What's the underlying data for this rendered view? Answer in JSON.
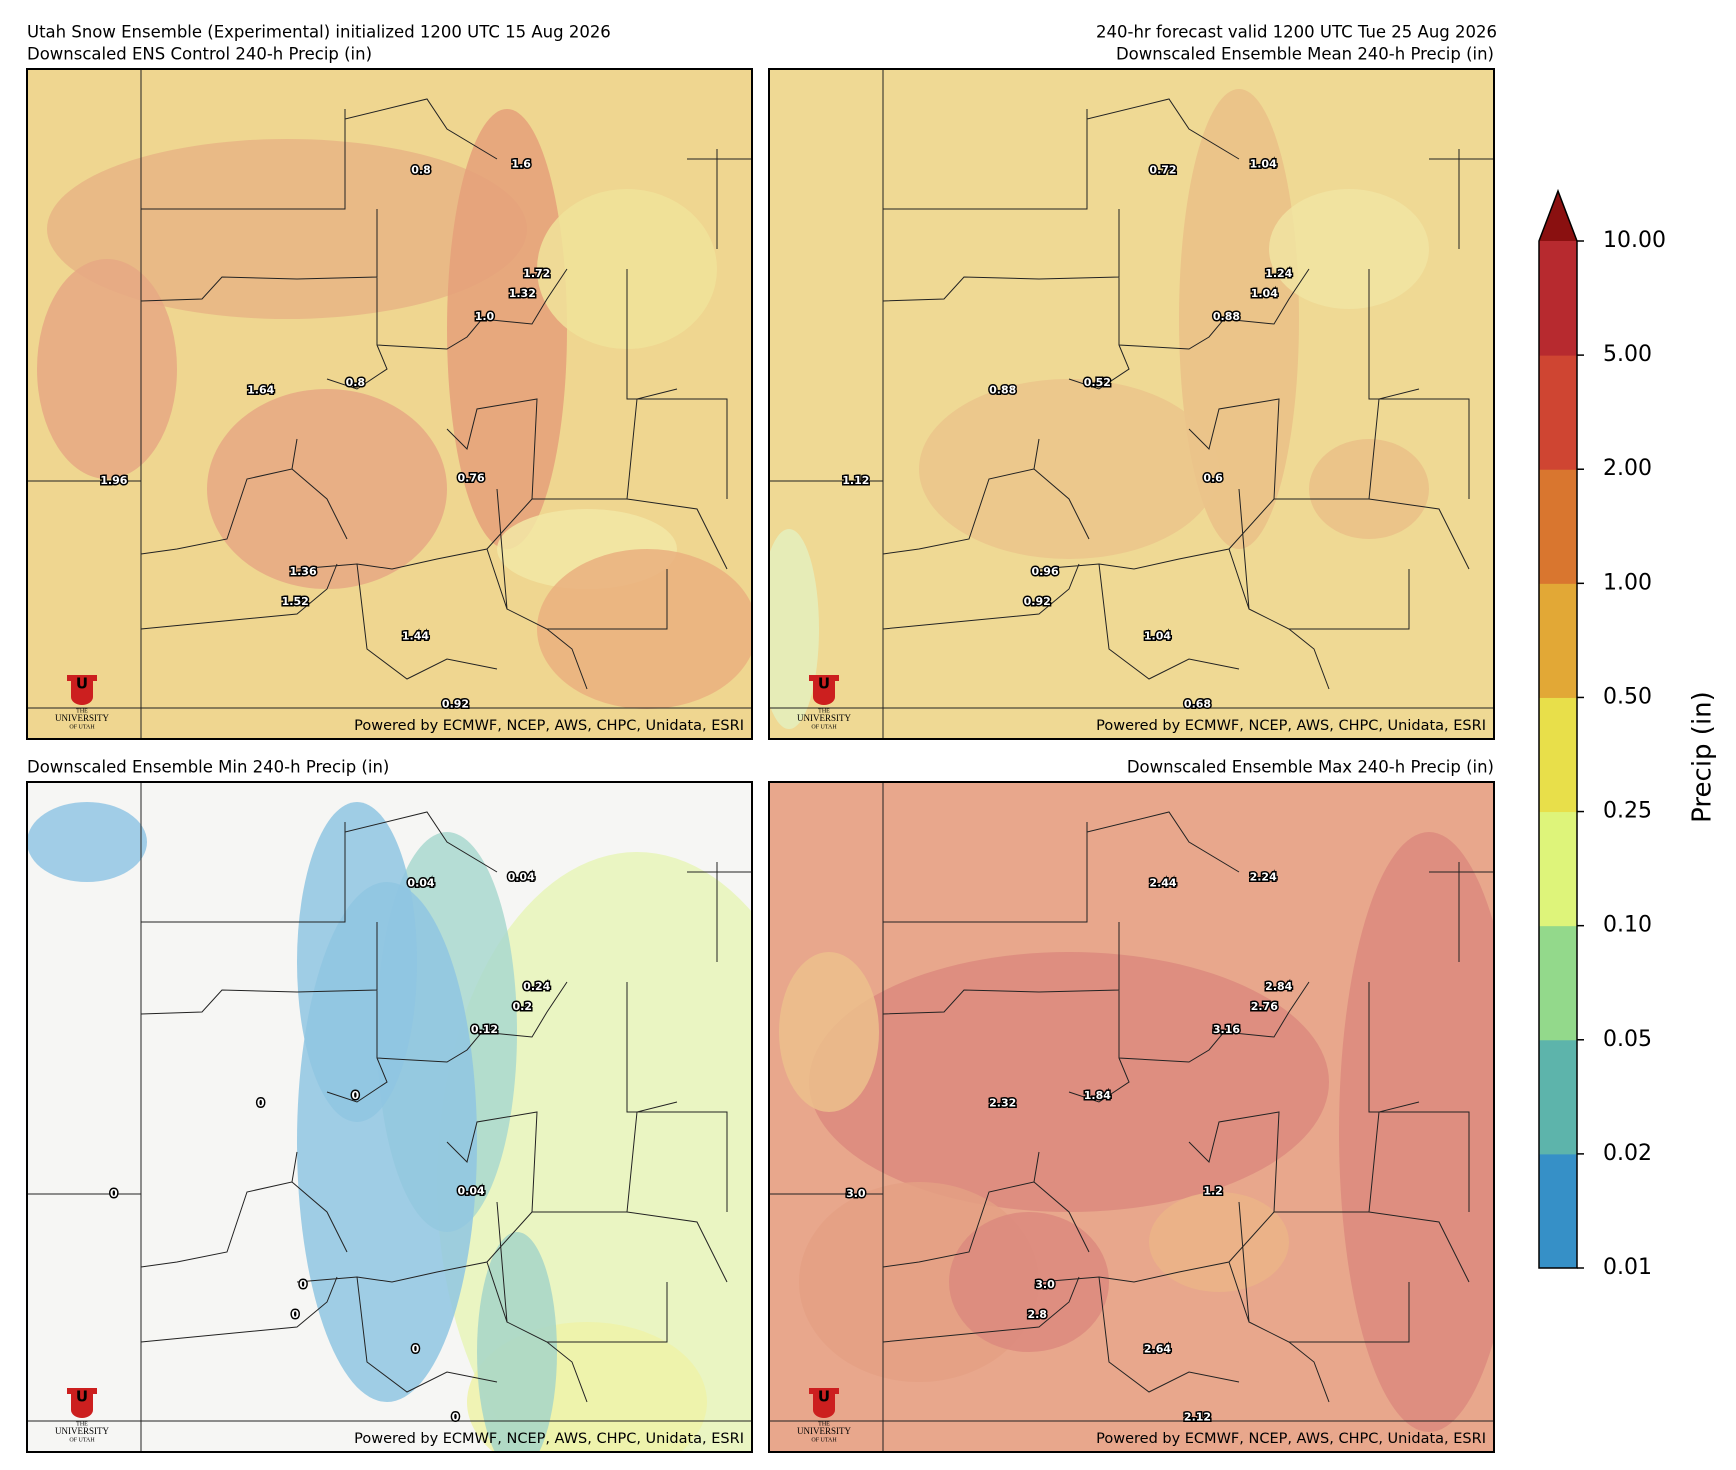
{
  "header": {
    "run": "Utah Snow Ensemble (Experimental) initialized 1200 UTC 15 Aug 2026",
    "valid": "240-hr forecast valid 1200 UTC Tue 25 Aug 2026"
  },
  "panels": [
    {
      "title": "Downscaled ENS Control 240-h Precip (in)",
      "labels": [
        "0.8",
        "1.6",
        "1.72",
        "1.32",
        "1.0",
        "1.64",
        "0.8",
        "1.96",
        "0.76",
        "1.36",
        "1.52",
        "1.44",
        "0.92"
      ],
      "credit": "Powered by ECMWF, NCEP, AWS, CHPC, Unidata, ESRI"
    },
    {
      "title": "Downscaled Ensemble Mean 240-h Precip (in)",
      "labels": [
        "0.72",
        "1.04",
        "1.24",
        "1.04",
        "0.88",
        "0.88",
        "0.52",
        "1.12",
        "0.6",
        "0.96",
        "0.92",
        "1.04",
        "0.68"
      ],
      "credit": "Powered by ECMWF, NCEP, AWS, CHPC, Unidata, ESRI"
    },
    {
      "title": "Downscaled Ensemble Min 240-h Precip (in)",
      "labels": [
        "0.04",
        "0.04",
        "0.24",
        "0.2",
        "0.12",
        "0",
        "0",
        "0",
        "0.04",
        "0",
        "0",
        "0",
        "0"
      ],
      "credit": "Powered by ECMWF, NCEP, AWS, CHPC, Unidata, ESRI"
    },
    {
      "title": "Downscaled Ensemble Max 240-h Precip (in)",
      "labels": [
        "2.44",
        "2.24",
        "2.84",
        "2.76",
        "3.16",
        "2.32",
        "1.84",
        "3.0",
        "1.2",
        "3.0",
        "2.8",
        "2.64",
        "2.12"
      ],
      "credit": "Powered by ECMWF, NCEP, AWS, CHPC, Unidata, ESRI"
    }
  ],
  "logo": {
    "mark": "U",
    "lines": [
      "THE",
      "UNIVERSITY",
      "OF UTAH"
    ]
  },
  "colorbar": {
    "label": "Precip (in)",
    "ticks": [
      {
        "value": 0.01,
        "label": "0.01"
      },
      {
        "value": 0.02,
        "label": "0.02"
      },
      {
        "value": 0.05,
        "label": "0.05"
      },
      {
        "value": 0.1,
        "label": "0.10"
      },
      {
        "value": 0.25,
        "label": "0.25"
      },
      {
        "value": 0.5,
        "label": "0.50"
      },
      {
        "value": 1,
        "label": "1.00"
      },
      {
        "value": 2,
        "label": "2.00"
      },
      {
        "value": 5,
        "label": "5.00"
      },
      {
        "value": 10,
        "label": "10.00"
      }
    ],
    "colors": [
      "#3690c7",
      "#5db4ab",
      "#93d98b",
      "#def47a",
      "#e8df4a",
      "#e2a836",
      "#d9762f",
      "#cf4532",
      "#b72a2f"
    ],
    "extend_color": "#8a1010"
  }
}
